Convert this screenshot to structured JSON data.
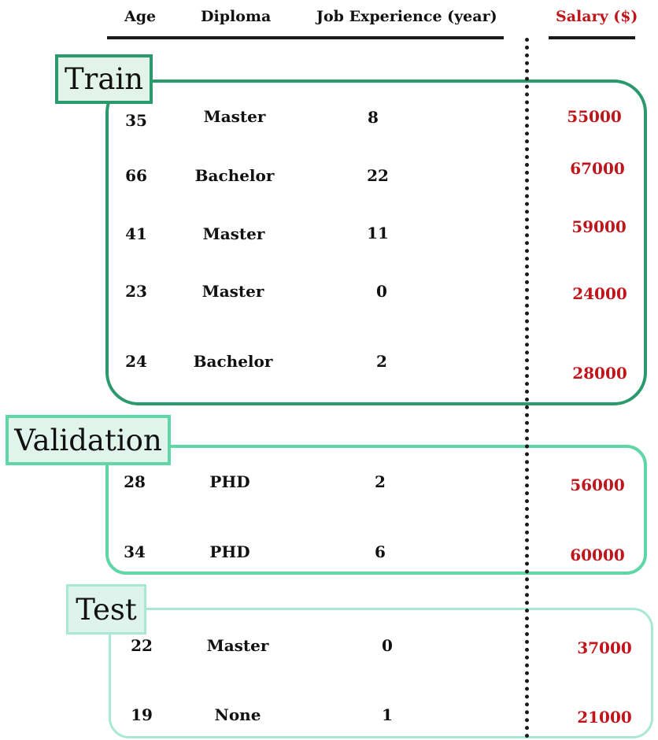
{
  "headers": {
    "age": "Age",
    "diploma": "Diploma",
    "experience": "Job Experience (year)",
    "salary": "Salary ($)"
  },
  "groups": {
    "train": {
      "label": "Train",
      "rows": [
        {
          "age": "35",
          "diploma": "Master",
          "experience": "8",
          "salary": "55000"
        },
        {
          "age": "66",
          "diploma": "Bachelor",
          "experience": "22",
          "salary": "67000"
        },
        {
          "age": "41",
          "diploma": "Master",
          "experience": "11",
          "salary": "59000"
        },
        {
          "age": "23",
          "diploma": "Master",
          "experience": "0",
          "salary": "24000"
        },
        {
          "age": "24",
          "diploma": "Bachelor",
          "experience": "2",
          "salary": "28000"
        }
      ]
    },
    "validation": {
      "label": "Validation",
      "rows": [
        {
          "age": "28",
          "diploma": "PHD",
          "experience": "2",
          "salary": "56000"
        },
        {
          "age": "34",
          "diploma": "PHD",
          "experience": "6",
          "salary": "60000"
        }
      ]
    },
    "test": {
      "label": "Test",
      "rows": [
        {
          "age": "22",
          "diploma": "Master",
          "experience": "0",
          "salary": "37000"
        },
        {
          "age": "19",
          "diploma": "None",
          "experience": "1",
          "salary": "21000"
        }
      ]
    }
  },
  "colors": {
    "train": "#2a9a6e",
    "validation": "#5fd6a6",
    "test": "#a9e9d1",
    "salary_text": "#c0151b"
  }
}
